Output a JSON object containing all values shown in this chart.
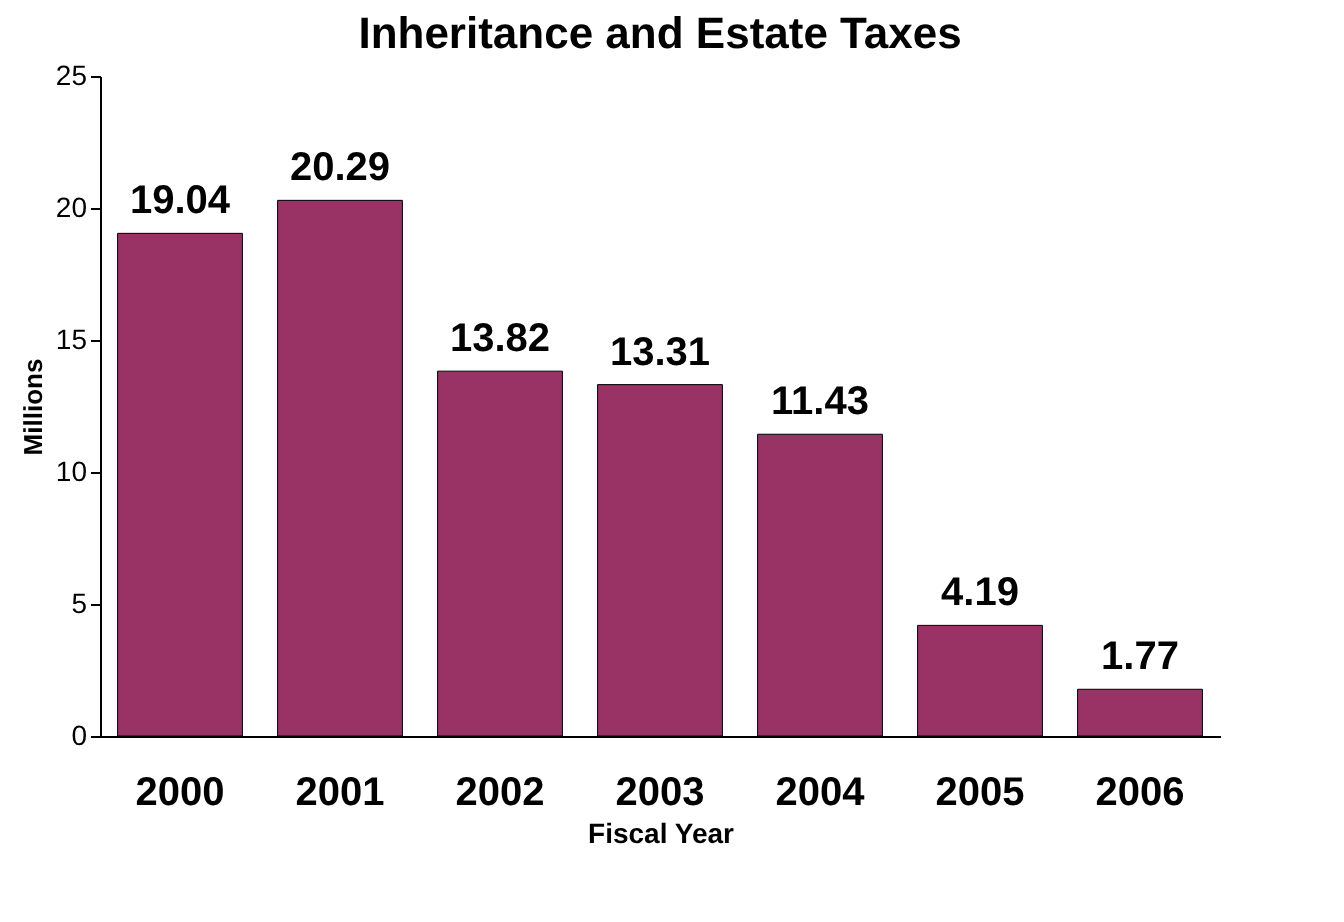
{
  "chart_data": {
    "type": "bar",
    "title": "Inheritance and Estate Taxes",
    "xlabel": "Fiscal Year",
    "ylabel": "Millions",
    "categories": [
      "2000",
      "2001",
      "2002",
      "2003",
      "2004",
      "2005",
      "2006"
    ],
    "values": [
      19.04,
      20.29,
      13.82,
      13.31,
      11.43,
      4.19,
      1.77
    ],
    "color": "#993366",
    "ylim": [
      0,
      25
    ],
    "yticks": [
      0,
      5,
      10,
      15,
      20,
      25
    ],
    "grid": false,
    "data_labels": true
  }
}
